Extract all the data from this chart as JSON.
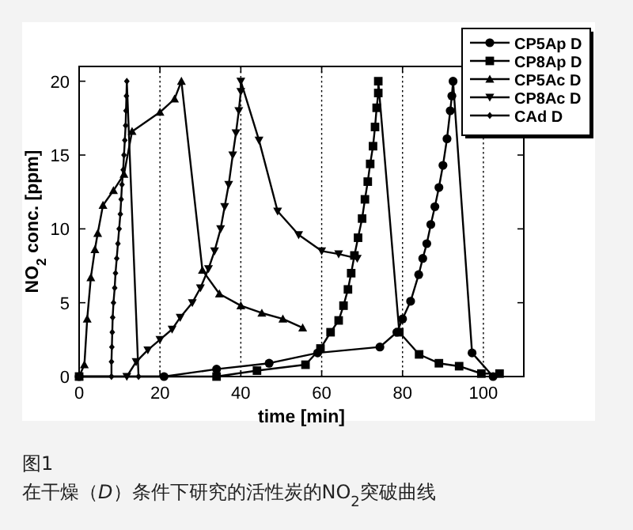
{
  "chart_data": {
    "type": "line",
    "xlabel": "time [min]",
    "ylabel": "NO$_{2}$ conc. [ppm]",
    "xlim": [
      0,
      110
    ],
    "ylim": [
      0,
      21
    ],
    "xticks": [
      0,
      20,
      40,
      60,
      80,
      100
    ],
    "yticks": [
      0,
      5,
      10,
      15,
      20
    ],
    "grid": "x",
    "legend": "top right",
    "line_style": "solid",
    "annotations": [
      "图1",
      "在干燥（*D*）条件下研究的活性炭的NO$_{2}$突破曲线"
    ],
    "series": [
      {
        "name": "CP5Ap D",
        "color": "#000000",
        "marker": "circle",
        "x": [
          0,
          21,
          34,
          47,
          59,
          74.4,
          78.6,
          80,
          82,
          84,
          85,
          86,
          87,
          88,
          89,
          90,
          91,
          91.8,
          92.2,
          92.5,
          97.2,
          102.4
        ],
        "values": [
          0,
          0,
          0.5,
          0.9,
          1.6,
          2,
          3,
          3.9,
          5.1,
          6.9,
          8,
          9,
          10.3,
          11.5,
          12.8,
          14.3,
          16.1,
          18,
          19,
          20,
          1.6,
          0
        ]
      },
      {
        "name": "CP8Ap D",
        "color": "#010101",
        "marker": "square",
        "x": [
          0,
          34,
          44,
          56,
          59.7,
          62.2,
          64.2,
          65.4,
          66.5,
          67.3,
          68.1,
          69,
          70,
          70.7,
          71.4,
          72,
          72.7,
          73.2,
          73.6,
          74,
          74,
          79.2,
          84.1,
          89,
          94,
          99.5,
          104
        ],
        "values": [
          0,
          0,
          0.4,
          0.8,
          1.9,
          3,
          3.8,
          4.8,
          5.9,
          7,
          8.2,
          9.4,
          10.7,
          12,
          13.2,
          14.4,
          15.6,
          16.9,
          18.2,
          19.2,
          20,
          3,
          1.5,
          0.9,
          0.7,
          0.2,
          0.2
        ]
      },
      {
        "name": "CP5Ac D",
        "color": "#020202",
        "marker": "triangle",
        "x": [
          0,
          1.3,
          2,
          2.9,
          3.9,
          4.6,
          5.9,
          8.5,
          11.1,
          13.1,
          20,
          23.6,
          25.3,
          30.5,
          34.7,
          40,
          45.2,
          50.4,
          55.3
        ],
        "values": [
          0,
          0.8,
          3.9,
          6.7,
          8.6,
          9.7,
          11.6,
          12.6,
          13.7,
          16.6,
          17.9,
          18.8,
          20,
          7.2,
          5.6,
          4.8,
          4.3,
          3.9,
          3.3
        ]
      },
      {
        "name": "CP8Ac D",
        "color": "#030303",
        "marker": "triangle-down",
        "x": [
          11.8,
          14.1,
          17,
          20,
          23,
          25,
          28,
          30,
          32,
          33.5,
          35,
          36,
          37,
          38,
          38.8,
          39.5,
          40,
          40,
          44.5,
          49.1,
          54.3,
          60,
          64.2,
          68.8
        ],
        "values": [
          0,
          1,
          1.8,
          2.5,
          3.2,
          4,
          5,
          6,
          7.3,
          8.5,
          10,
          11.5,
          13,
          15,
          16.5,
          18,
          19.3,
          20,
          16,
          11.2,
          9.6,
          8.5,
          8.3,
          8
        ]
      },
      {
        "name": "CAd D",
        "color": "#040404",
        "marker": "diamond",
        "x": [
          0,
          8,
          8,
          8.1,
          8.2,
          8.3,
          8.5,
          8.8,
          9,
          9.3,
          9.6,
          9.9,
          10.2,
          10.4,
          10.6,
          10.9,
          11.1,
          11.3,
          11.5,
          11.6,
          11.7,
          11.8,
          14.7
        ],
        "values": [
          0,
          0,
          1,
          2,
          3,
          4,
          5,
          6,
          7,
          8,
          9,
          10,
          11,
          12,
          13,
          14,
          15,
          16,
          17,
          18,
          19,
          20,
          0
        ]
      }
    ]
  }
}
